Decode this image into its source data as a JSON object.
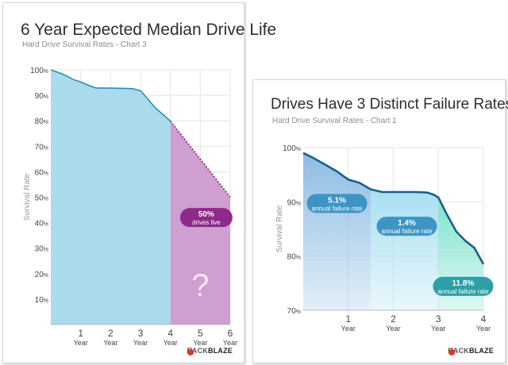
{
  "colors": {
    "area_fill": "#a9dbec",
    "line": "#2a8fb0",
    "grid": "#e4e4e4",
    "projection_fill": "#cf9fd1",
    "projection_line": "#8a3a88",
    "badge_purple": "#8e2a8a",
    "badge_blue": "#3d95c4",
    "badge_teal": "#2e9fa6",
    "zone1_fill": "#8ebce4",
    "zone2_fill": "#a8dff2",
    "zone3_fill": "#7fe3cf",
    "brand_red": "#d23b2a"
  },
  "brand": {
    "name_light": "BACK",
    "name_bold": "BLAZE",
    "icon": "flame-icon"
  },
  "left_chart": {
    "title": "6 Year Expected Median Drive Life",
    "subtitle": "Hard Drive Survival Rates - Chart 3",
    "chart_data": {
      "type": "area",
      "title": "6 Year Expected Median Drive Life",
      "subtitle": "Hard Drive Survival Rates - Chart 3",
      "ylabel": "Survival Rate",
      "xlabel": "",
      "xlim": [
        0,
        6
      ],
      "ylim": [
        0,
        100
      ],
      "grid": true,
      "x_ticks": [
        {
          "value": 1,
          "num": "1",
          "unit": "Year"
        },
        {
          "value": 2,
          "num": "2",
          "unit": "Year"
        },
        {
          "value": 3,
          "num": "3",
          "unit": "Year"
        },
        {
          "value": 4,
          "num": "4",
          "unit": "Year"
        },
        {
          "value": 5,
          "num": "5",
          "unit": "Year"
        },
        {
          "value": 6,
          "num": "6",
          "unit": "Year"
        }
      ],
      "y_ticks": [
        {
          "value": 10,
          "num": "10",
          "unit": "%"
        },
        {
          "value": 20,
          "num": "20",
          "unit": "%"
        },
        {
          "value": 30,
          "num": "30",
          "unit": "%"
        },
        {
          "value": 40,
          "num": "40",
          "unit": "%"
        },
        {
          "value": 50,
          "num": "50",
          "unit": "%"
        },
        {
          "value": 60,
          "num": "60",
          "unit": "%"
        },
        {
          "value": 70,
          "num": "70",
          "unit": "%"
        },
        {
          "value": 80,
          "num": "80",
          "unit": "%"
        },
        {
          "value": 90,
          "num": "90",
          "unit": "%"
        },
        {
          "value": 100,
          "num": "100",
          "unit": "%"
        }
      ],
      "series": [
        {
          "type": "observed",
          "points": [
            [
              0,
              100
            ],
            [
              0.25,
              99
            ],
            [
              0.5,
              97.8
            ],
            [
              0.75,
              96.2
            ],
            [
              1,
              95.2
            ],
            [
              1.25,
              94
            ],
            [
              1.5,
              92.9
            ],
            [
              2,
              92.8
            ],
            [
              2.5,
              92.7
            ],
            [
              2.75,
              92.6
            ],
            [
              3,
              91.8
            ],
            [
              3.25,
              88.5
            ],
            [
              3.5,
              85
            ],
            [
              3.75,
              82.5
            ],
            [
              4,
              79.8
            ]
          ]
        },
        {
          "type": "projected",
          "points": [
            [
              4,
              79.8
            ],
            [
              6,
              50
            ]
          ]
        }
      ],
      "annotations": [
        {
          "line1": "50%",
          "line2": "drives live",
          "x": 5.2,
          "y": 42
        },
        {
          "text": "?",
          "x": 5.0,
          "y": 15
        }
      ]
    }
  },
  "right_chart": {
    "title": "Drives Have 3 Distinct Failure Rates",
    "subtitle": "Hard Drive Survival Rates - Chart 1",
    "chart_data": {
      "type": "area",
      "title": "Drives Have 3 Distinct Failure Rates",
      "subtitle": "Hard Drive Survival Rates - Chart 1",
      "ylabel": "Survival Rate",
      "xlabel": "",
      "xlim": [
        0,
        4
      ],
      "ylim": [
        70,
        100
      ],
      "grid": true,
      "x_ticks": [
        {
          "value": 1,
          "num": "1",
          "unit": "Year"
        },
        {
          "value": 2,
          "num": "2",
          "unit": "Year"
        },
        {
          "value": 3,
          "num": "3",
          "unit": "Year"
        },
        {
          "value": 4,
          "num": "4",
          "unit": "Year"
        }
      ],
      "y_ticks": [
        {
          "value": 70,
          "num": "70",
          "unit": "%"
        },
        {
          "value": 80,
          "num": "80",
          "unit": "%"
        },
        {
          "value": 90,
          "num": "90",
          "unit": "%"
        },
        {
          "value": 100,
          "num": "100",
          "unit": "%"
        }
      ],
      "zones": [
        {
          "from": 0,
          "to": 1.5,
          "rate": "5.1%",
          "caption": "annual failure rate",
          "label_x": 0.75,
          "label_y": 89.7
        },
        {
          "from": 1.5,
          "to": 3,
          "rate": "1.4%",
          "caption": "annual failure rate",
          "label_x": 2.3,
          "label_y": 85.5
        },
        {
          "from": 3,
          "to": 4,
          "rate": "11.8%",
          "caption": "annual failure rate",
          "label_x": 3.55,
          "label_y": 74.4
        }
      ],
      "series": [
        {
          "type": "observed",
          "points": [
            [
              0,
              99
            ],
            [
              0.2,
              98.2
            ],
            [
              0.5,
              96.8
            ],
            [
              0.75,
              95.6
            ],
            [
              1,
              94.1
            ],
            [
              1.25,
              93.5
            ],
            [
              1.5,
              92.3
            ],
            [
              1.75,
              91.8
            ],
            [
              2,
              91.8
            ],
            [
              2.5,
              91.8
            ],
            [
              2.75,
              91.7
            ],
            [
              2.9,
              91.3
            ],
            [
              3,
              90.8
            ],
            [
              3.2,
              87.5
            ],
            [
              3.4,
              84.5
            ],
            [
              3.6,
              82.8
            ],
            [
              3.8,
              81.5
            ],
            [
              4,
              78.5
            ]
          ]
        }
      ]
    }
  }
}
